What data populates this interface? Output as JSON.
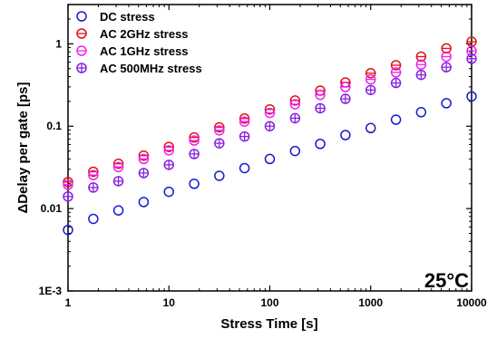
{
  "chart_data": {
    "type": "scatter",
    "title": "",
    "xlabel": "Stress Time [s]",
    "ylabel": "ΔDelay per gate [ps]",
    "xscale": "log",
    "yscale": "log",
    "xlim": [
      1,
      10000
    ],
    "ylim": [
      0.001,
      3
    ],
    "x_ticks": [
      {
        "value": 1,
        "label": "1"
      },
      {
        "value": 10,
        "label": "10"
      },
      {
        "value": 100,
        "label": "100"
      },
      {
        "value": 1000,
        "label": "1000"
      },
      {
        "value": 10000,
        "label": "10000"
      }
    ],
    "y_ticks": [
      {
        "value": 0.001,
        "label": "1E-3"
      },
      {
        "value": 0.01,
        "label": "0.01"
      },
      {
        "value": 0.1,
        "label": "0.1"
      },
      {
        "value": 1,
        "label": "1"
      }
    ],
    "grid": false,
    "legend_position": "top-left",
    "annotation": "25°C",
    "x": [
      1,
      1.78,
      3.16,
      5.62,
      10,
      17.8,
      31.6,
      56.2,
      100,
      178,
      316,
      562,
      1000,
      1780,
      3160,
      5620,
      10000
    ],
    "series": [
      {
        "name": "DC stress",
        "color": "#1a1acc",
        "marker": "circle-open",
        "values": [
          0.0055,
          0.0075,
          0.0095,
          0.012,
          0.016,
          0.02,
          0.025,
          0.031,
          0.04,
          0.05,
          0.061,
          0.078,
          0.095,
          0.12,
          0.148,
          0.19,
          0.23
        ]
      },
      {
        "name": "AC 2GHz stress",
        "color": "#dd1111",
        "marker": "circle-hbar",
        "values": [
          0.021,
          0.028,
          0.035,
          0.044,
          0.056,
          0.073,
          0.097,
          0.124,
          0.16,
          0.205,
          0.27,
          0.34,
          0.44,
          0.55,
          0.7,
          0.88,
          1.06
        ]
      },
      {
        "name": "AC 1GHz stress",
        "color": "#ee22ee",
        "marker": "circle-hbar",
        "values": [
          0.0195,
          0.0255,
          0.032,
          0.04,
          0.051,
          0.067,
          0.089,
          0.114,
          0.145,
          0.185,
          0.24,
          0.3,
          0.37,
          0.45,
          0.56,
          0.7,
          0.82
        ]
      },
      {
        "name": "AC 500MHz stress",
        "color": "#8822dd",
        "marker": "circle-cross",
        "values": [
          0.014,
          0.018,
          0.0215,
          0.027,
          0.034,
          0.046,
          0.062,
          0.075,
          0.1,
          0.125,
          0.165,
          0.215,
          0.275,
          0.335,
          0.42,
          0.52,
          0.66
        ]
      }
    ]
  }
}
